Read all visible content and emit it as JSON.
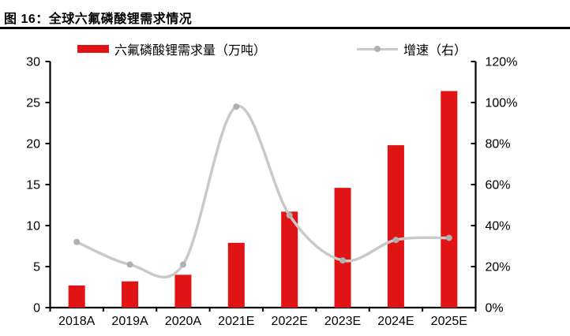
{
  "figure": {
    "title": "图 16：全球六氟磷酸锂需求情况"
  },
  "legend": {
    "demand_label": "六氟磷酸锂需求量（万吨）",
    "growth_label": "增速（右）"
  },
  "colors": {
    "bar_red": "#e01414",
    "line_gray": "#c9c9c9",
    "marker_gray": "#b0b0b0",
    "axis_black": "#000000"
  },
  "chart_data": {
    "type": "bar",
    "subtype": "combo-bar-line",
    "title": "全球六氟磷酸锂需求情况",
    "categories": [
      "2018A",
      "2019A",
      "2020A",
      "2021E",
      "2022E",
      "2023E",
      "2024E",
      "2025E"
    ],
    "series": [
      {
        "name": "六氟磷酸锂需求量（万吨）",
        "type": "bar",
        "axis": "left",
        "color": "#e01414",
        "values": [
          2.7,
          3.2,
          4.0,
          7.9,
          11.7,
          14.6,
          19.8,
          26.4
        ]
      },
      {
        "name": "增速（右）",
        "type": "line",
        "axis": "right",
        "smooth": true,
        "color": "#c9c9c9",
        "marker_color": "#b0b0b0",
        "values": [
          32,
          21,
          21,
          98,
          45,
          23,
          33,
          34
        ],
        "unit": "%"
      }
    ],
    "left_axis": {
      "min": 0,
      "max": 30,
      "step": 5,
      "tick_values": [
        0,
        5,
        10,
        15,
        20,
        25,
        30
      ],
      "tick_labels": [
        "0",
        "5",
        "10",
        "15",
        "20",
        "25",
        "30"
      ]
    },
    "right_axis": {
      "min": 0,
      "max": 120,
      "step": 20,
      "tick_values": [
        0,
        20,
        40,
        60,
        80,
        100,
        120
      ],
      "tick_labels": [
        "0%",
        "20%",
        "40%",
        "60%",
        "80%",
        "100%",
        "120%"
      ]
    },
    "grid": false,
    "legend_position": "top"
  }
}
